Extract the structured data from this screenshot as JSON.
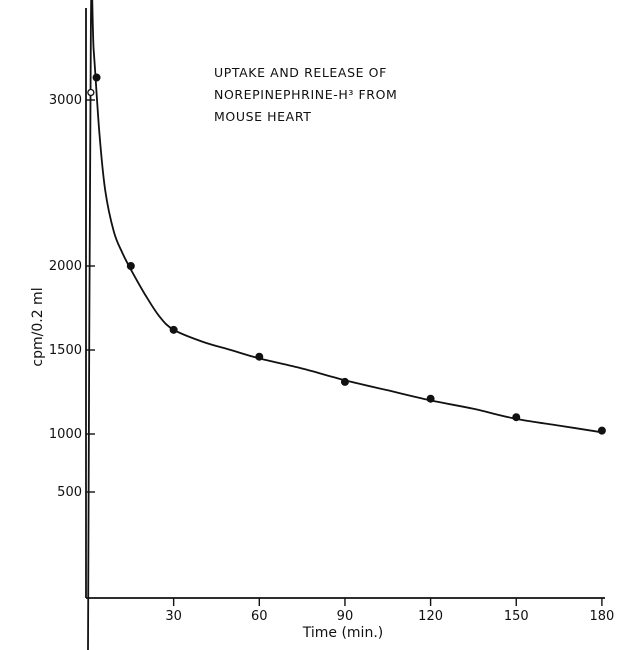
{
  "chart_data": {
    "type": "scatter",
    "title_lines": [
      "UPTAKE AND RELEASE OF",
      "NOREPINEPHRINE-H³ FROM",
      "MOUSE HEART"
    ],
    "xlabel": "Time (min.)",
    "ylabel": "cpm/0.2 ml",
    "x_ticks": [
      30,
      60,
      90,
      120,
      150,
      180
    ],
    "x_tick_labels": [
      "30",
      "60",
      "90",
      "120",
      "150",
      "180"
    ],
    "y_ticks": [
      500,
      1000,
      1500,
      2000,
      3000
    ],
    "y_tick_labels": [
      "500",
      "1000",
      "1500",
      "2000",
      "3000"
    ],
    "xlim": [
      0,
      190
    ],
    "ylim": [
      0,
      3600
    ],
    "y_scale": "nonlinear",
    "points": [
      {
        "x": 1,
        "y": 3050,
        "marker": "open"
      },
      {
        "x": 3,
        "y": 3150,
        "marker": "filled"
      },
      {
        "x": 15,
        "y": 2000,
        "marker": "filled"
      },
      {
        "x": 30,
        "y": 1620,
        "marker": "filled"
      },
      {
        "x": 60,
        "y": 1460,
        "marker": "filled"
      },
      {
        "x": 90,
        "y": 1310,
        "marker": "filled"
      },
      {
        "x": 120,
        "y": 1210,
        "marker": "filled"
      },
      {
        "x": 150,
        "y": 1100,
        "marker": "filled"
      },
      {
        "x": 180,
        "y": 1020,
        "marker": "filled"
      }
    ],
    "fitted_curve": [
      {
        "x": 0,
        "y": 0
      },
      {
        "x": 1,
        "y": 3500
      },
      {
        "x": 2,
        "y": 3330
      },
      {
        "x": 4,
        "y": 2800
      },
      {
        "x": 6,
        "y": 2460
      },
      {
        "x": 9,
        "y": 2210
      },
      {
        "x": 12,
        "y": 2080
      },
      {
        "x": 15,
        "y": 1980
      },
      {
        "x": 20,
        "y": 1830
      },
      {
        "x": 25,
        "y": 1700
      },
      {
        "x": 30,
        "y": 1620
      },
      {
        "x": 40,
        "y": 1550
      },
      {
        "x": 50,
        "y": 1500
      },
      {
        "x": 60,
        "y": 1450
      },
      {
        "x": 75,
        "y": 1390
      },
      {
        "x": 90,
        "y": 1320
      },
      {
        "x": 105,
        "y": 1260
      },
      {
        "x": 120,
        "y": 1200
      },
      {
        "x": 135,
        "y": 1150
      },
      {
        "x": 150,
        "y": 1090
      },
      {
        "x": 165,
        "y": 1050
      },
      {
        "x": 180,
        "y": 1010
      }
    ],
    "grid": false,
    "legend": "none"
  }
}
